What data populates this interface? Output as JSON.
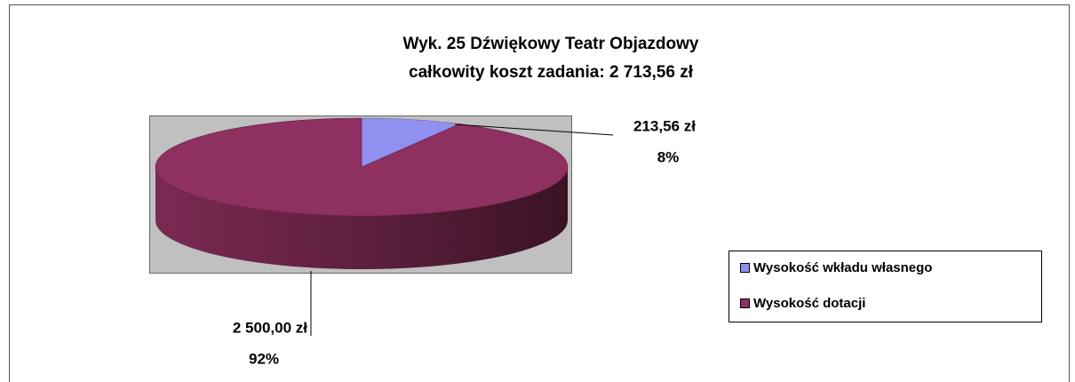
{
  "chart_data": {
    "type": "pie",
    "title": "Wyk. 25 Dźwiękowy Teatr Objazdowy",
    "subtitle": "całkowity koszt zadania: 2 713,56 zł",
    "categories": [
      "Wysokość wkładu własnego",
      "Wysokość dotacji"
    ],
    "values": [
      213.56,
      2500
    ],
    "value_labels": [
      "213,56 zł",
      "2 500,00 zł"
    ],
    "percents": [
      8,
      92
    ],
    "percent_labels": [
      "8%",
      "92%"
    ],
    "colors": [
      "#9090f0",
      "#8e3060"
    ],
    "legend": "right"
  }
}
